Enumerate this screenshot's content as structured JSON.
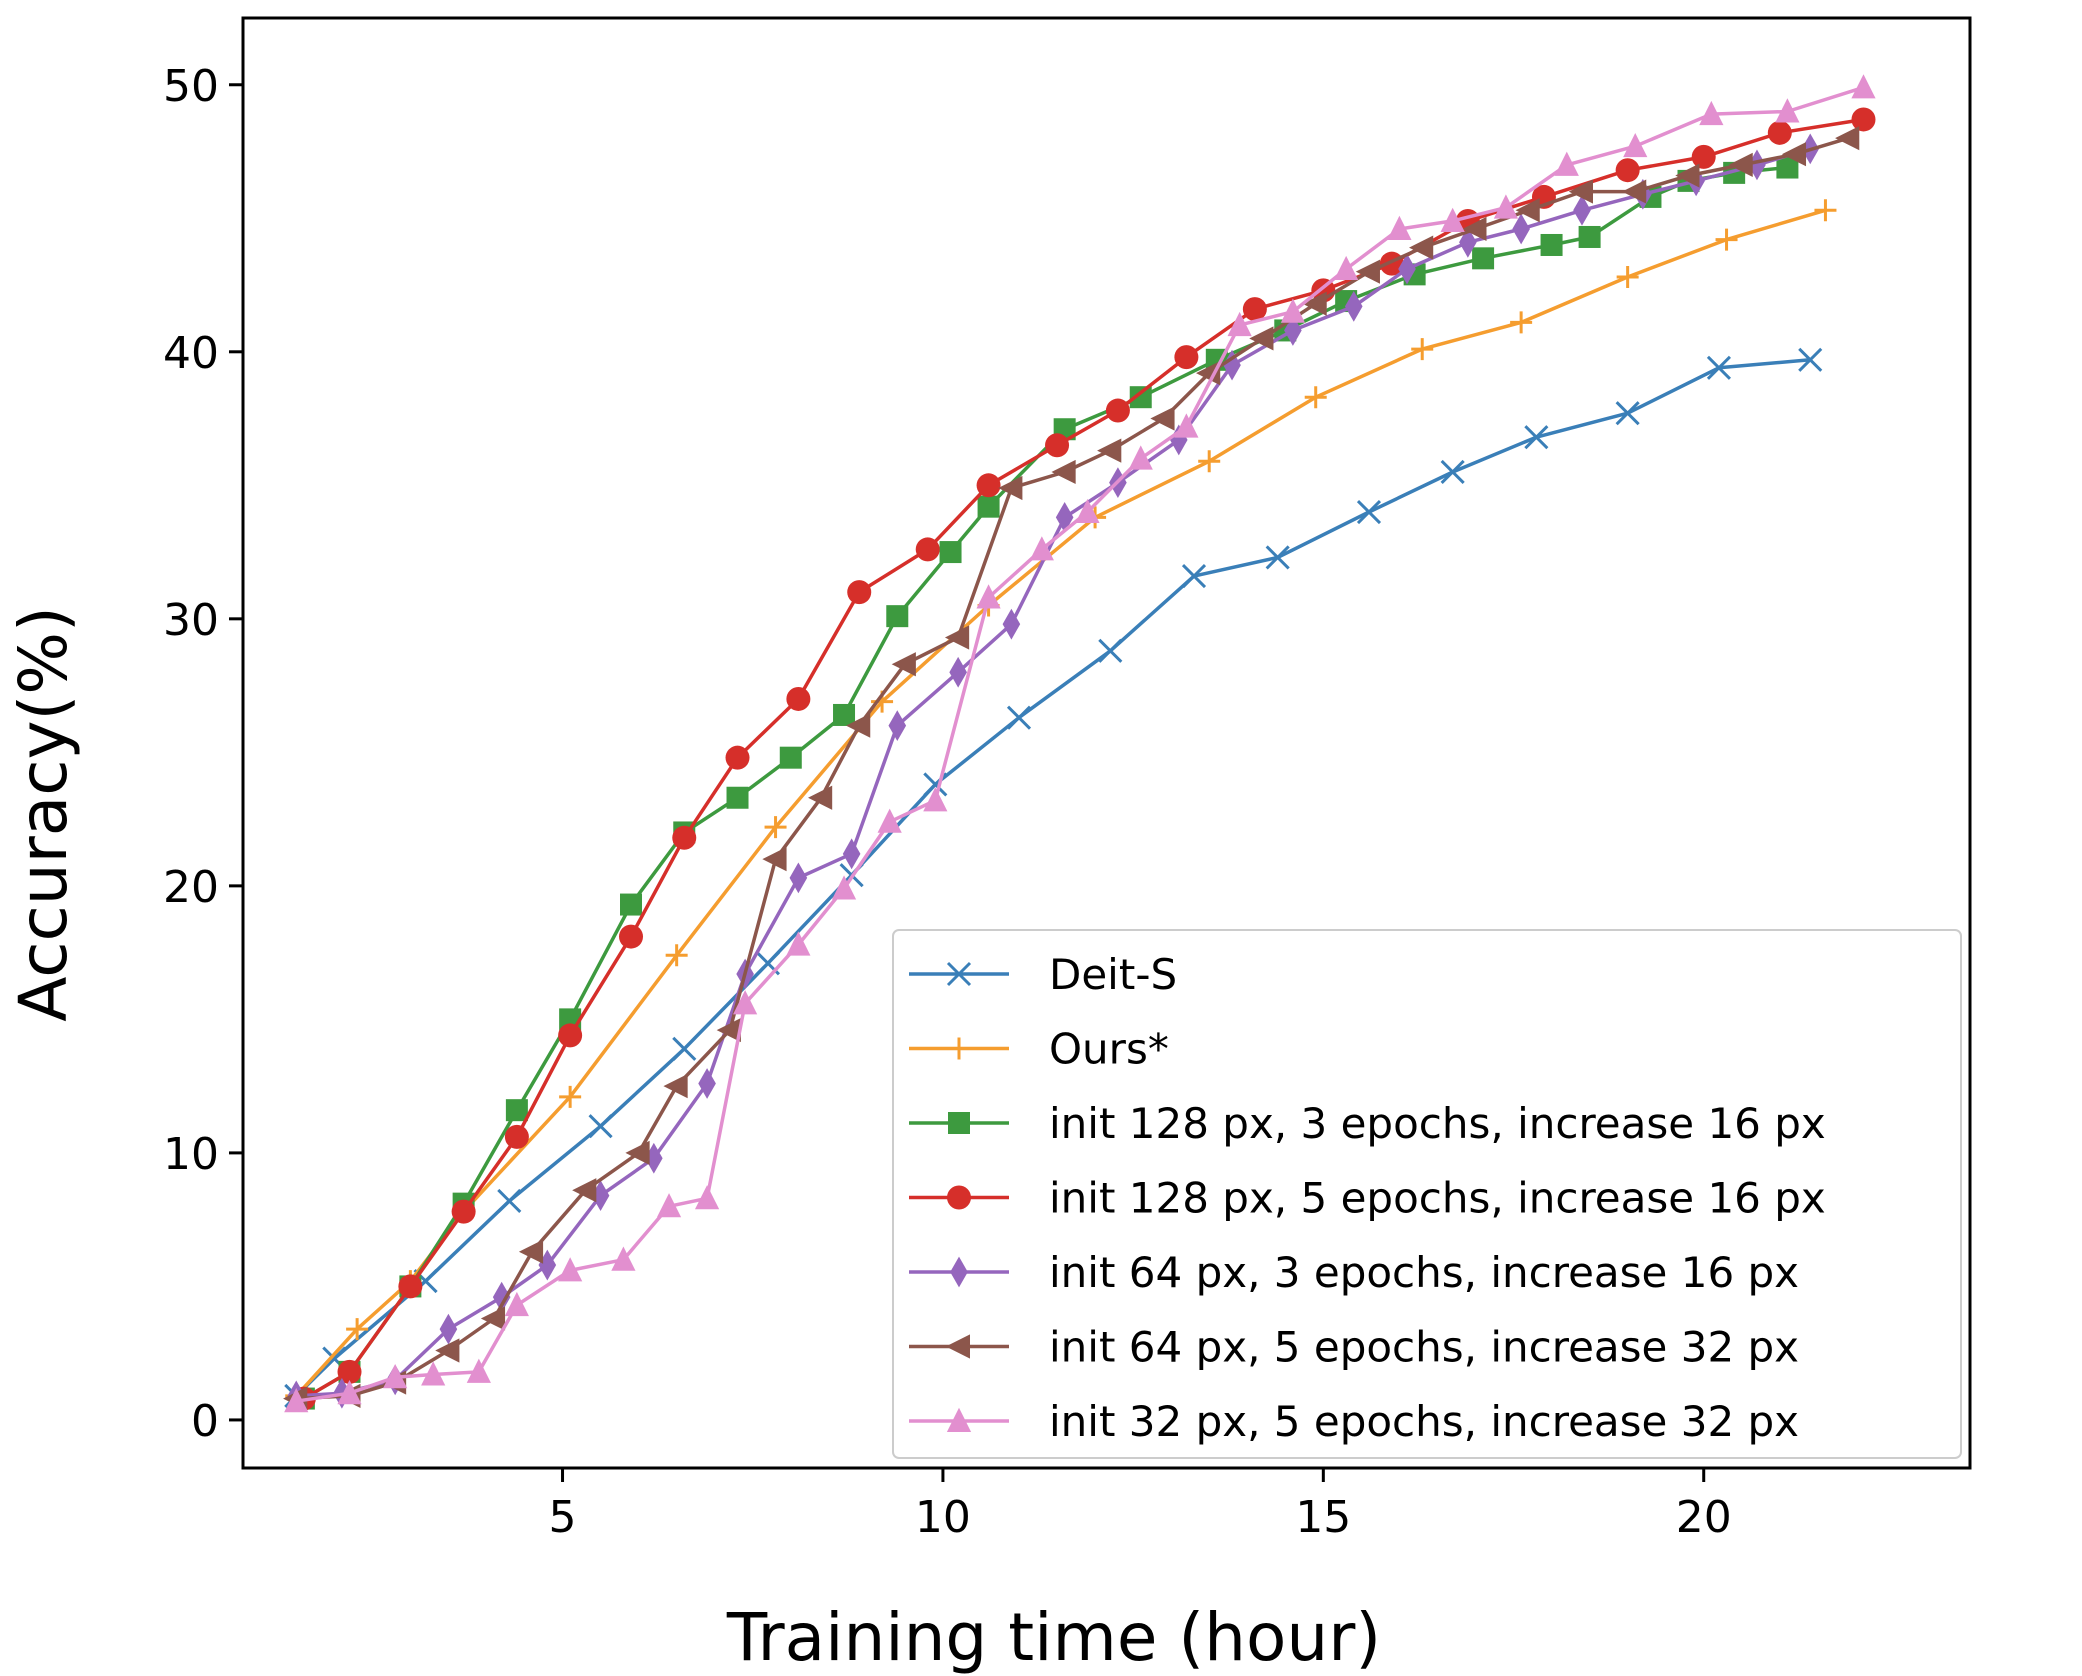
{
  "chart_data": {
    "type": "line",
    "xlabel": "Training time (hour)",
    "ylabel": "Accuracy(%)",
    "xlim": [
      0.8,
      23.5
    ],
    "ylim": [
      -1.8,
      52.5
    ],
    "xticks": [
      5,
      10,
      15,
      20
    ],
    "yticks": [
      0,
      10,
      20,
      30,
      40,
      50
    ],
    "xtick_labels": [
      "5",
      "10",
      "15",
      "20"
    ],
    "ytick_labels": [
      "0",
      "10",
      "20",
      "30",
      "40",
      "50"
    ],
    "grid": false,
    "legend_position": "lower-right",
    "series": [
      {
        "name": "Deit-S",
        "color": "#3a7fb8",
        "marker": "x",
        "x": [
          1.5,
          2.0,
          3.2,
          4.3,
          5.5,
          6.6,
          7.7,
          8.8,
          9.9,
          11.0,
          12.2,
          13.3,
          14.4,
          15.6,
          16.7,
          17.8,
          19.0,
          20.2,
          21.4
        ],
        "y": [
          0.9,
          2.3,
          5.2,
          8.2,
          11.0,
          13.9,
          17.1,
          20.4,
          23.8,
          26.3,
          28.8,
          31.6,
          32.3,
          34.0,
          35.5,
          36.8,
          37.7,
          39.4,
          39.7
        ]
      },
      {
        "name": "Ours*",
        "color": "#f59d2f",
        "marker": "+",
        "x": [
          1.5,
          2.3,
          3.0,
          3.7,
          5.1,
          6.5,
          7.8,
          9.2,
          10.6,
          12.0,
          13.5,
          14.9,
          16.3,
          17.6,
          19.0,
          20.3,
          21.6
        ],
        "y": [
          0.9,
          3.4,
          5.2,
          7.8,
          12.1,
          17.4,
          22.2,
          26.9,
          30.5,
          33.8,
          35.9,
          38.3,
          40.1,
          41.1,
          42.8,
          44.2,
          45.3
        ]
      },
      {
        "name": "init 128 px, 3 epochs, increase 16 px",
        "color": "#3d9a3f",
        "marker": "s",
        "x": [
          1.6,
          2.2,
          3.0,
          3.7,
          4.4,
          5.1,
          5.9,
          6.6,
          7.3,
          8.0,
          8.7,
          9.4,
          10.1,
          10.6,
          11.6,
          12.6,
          13.6,
          14.5,
          15.3,
          16.2,
          17.1,
          18.0,
          18.5,
          19.3,
          19.8,
          20.4,
          21.1
        ],
        "y": [
          0.8,
          1.8,
          5.0,
          8.1,
          11.6,
          15.0,
          19.3,
          22.0,
          23.3,
          24.8,
          26.4,
          30.1,
          32.5,
          34.2,
          37.1,
          38.3,
          39.7,
          40.8,
          41.9,
          42.9,
          43.5,
          44.0,
          44.3,
          45.8,
          46.4,
          46.7,
          46.9
        ]
      },
      {
        "name": "init 128 px, 5 epochs, increase 16 px",
        "color": "#d62f2a",
        "marker": "o",
        "x": [
          1.6,
          2.2,
          3.0,
          3.7,
          4.4,
          5.1,
          5.9,
          6.6,
          7.3,
          8.1,
          8.9,
          9.8,
          10.6,
          11.5,
          12.3,
          13.2,
          14.1,
          15.0,
          15.9,
          16.9,
          17.9,
          19.0,
          20.0,
          21.0,
          22.1
        ],
        "y": [
          0.8,
          1.8,
          5.0,
          7.8,
          10.6,
          14.4,
          18.1,
          21.8,
          24.8,
          27.0,
          31.0,
          32.6,
          35.0,
          36.5,
          37.8,
          39.8,
          41.6,
          42.3,
          43.3,
          44.9,
          45.8,
          46.8,
          47.3,
          48.2,
          48.7
        ]
      },
      {
        "name": "init 64 px, 3 epochs, increase 16 px",
        "color": "#9566bd",
        "marker": "d",
        "x": [
          1.5,
          2.1,
          2.8,
          3.5,
          4.2,
          4.8,
          5.5,
          6.2,
          6.9,
          7.4,
          8.1,
          8.8,
          9.4,
          10.2,
          10.9,
          11.6,
          12.3,
          13.1,
          13.8,
          14.6,
          15.4,
          16.1,
          16.9,
          17.6,
          18.4,
          19.2,
          19.9,
          20.7,
          21.4
        ],
        "y": [
          0.9,
          1.0,
          1.5,
          3.4,
          4.6,
          5.8,
          8.4,
          9.8,
          12.6,
          16.7,
          20.3,
          21.2,
          26.0,
          28.0,
          29.8,
          33.8,
          35.1,
          36.7,
          39.5,
          40.8,
          41.7,
          43.1,
          44.1,
          44.6,
          45.3,
          45.9,
          46.4,
          47.0,
          47.6
        ]
      },
      {
        "name": "init 64 px, 5 epochs, increase 32 px",
        "color": "#8c564b",
        "marker": "<",
        "x": [
          1.5,
          2.2,
          2.8,
          3.5,
          4.1,
          4.6,
          5.3,
          6.0,
          6.5,
          7.2,
          7.8,
          8.4,
          8.9,
          9.5,
          10.2,
          10.9,
          11.6,
          12.2,
          12.9,
          13.5,
          14.2,
          14.9,
          15.6,
          16.3,
          17.0,
          17.7,
          18.4,
          19.1,
          19.8,
          20.5,
          21.2,
          21.9
        ],
        "y": [
          0.8,
          0.9,
          1.4,
          2.6,
          3.8,
          6.3,
          8.6,
          10.0,
          12.5,
          14.6,
          21.0,
          23.3,
          26.0,
          28.3,
          29.3,
          34.9,
          35.5,
          36.3,
          37.5,
          39.2,
          40.5,
          41.8,
          43.0,
          43.9,
          44.6,
          45.3,
          46.0,
          46.0,
          46.6,
          47.0,
          47.4,
          48.0
        ]
      },
      {
        "name": "init 32 px, 5 epochs, increase 32 px",
        "color": "#e28fcf",
        "marker": "^",
        "x": [
          1.5,
          2.2,
          2.8,
          3.3,
          3.9,
          4.4,
          5.1,
          5.8,
          6.4,
          6.9,
          7.4,
          8.1,
          8.7,
          9.3,
          9.9,
          10.6,
          11.3,
          11.9,
          12.6,
          13.2,
          13.9,
          14.6,
          15.3,
          16.0,
          16.7,
          17.4,
          18.2,
          19.1,
          20.1,
          21.1,
          22.1
        ],
        "y": [
          0.7,
          1.0,
          1.6,
          1.7,
          1.8,
          4.3,
          5.6,
          6.0,
          8.0,
          8.3,
          15.6,
          17.8,
          19.9,
          22.4,
          23.2,
          30.8,
          32.6,
          34.0,
          36.0,
          37.2,
          41.0,
          41.5,
          43.1,
          44.6,
          44.9,
          45.4,
          47.0,
          47.7,
          48.9,
          49.0,
          49.9
        ]
      }
    ]
  }
}
